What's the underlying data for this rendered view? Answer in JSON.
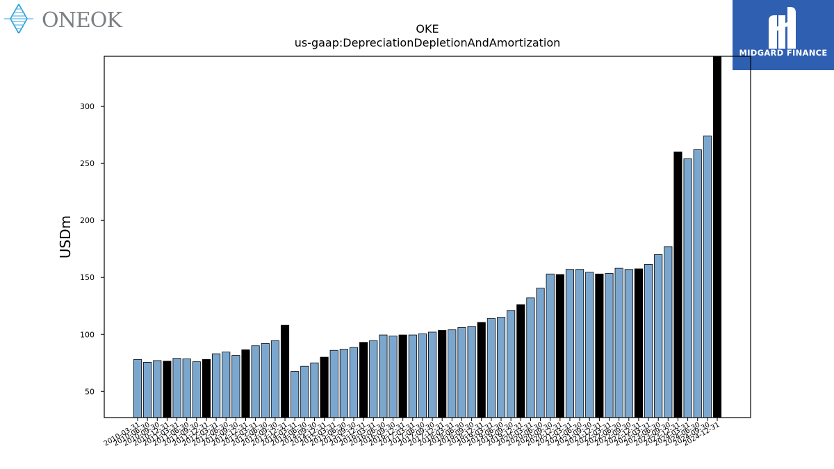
{
  "brand": {
    "company": "ONEOK",
    "watermark": "MIDGARD FINANCE"
  },
  "colors": {
    "bar_default": "#7ba7cf",
    "bar_highlight": "#000000",
    "bar_edge": "#000000",
    "watermark_bg": "#2f5fb0"
  },
  "chart_data": {
    "type": "bar",
    "title": "OKE",
    "subtitle": "us-gaap:DepreciationDepletionAndAmortization",
    "xlabel": "",
    "ylabel": "USDm",
    "ylim": [
      27,
      344
    ],
    "yticks": [
      50,
      100,
      150,
      200,
      250,
      300
    ],
    "grid": false,
    "legend": "none",
    "categories": [
      "2010-03-31",
      "2010-06-30",
      "2010-09-30",
      "2010-12-31",
      "2011-03-31",
      "2011-06-30",
      "2011-09-30",
      "2011-12-31",
      "2012-03-31",
      "2012-06-30",
      "2012-09-30",
      "2012-12-31",
      "2013-03-31",
      "2013-06-30",
      "2013-09-30",
      "2013-12-31",
      "2014-03-31",
      "2014-06-30",
      "2014-09-30",
      "2014-12-31",
      "2015-03-31",
      "2015-06-30",
      "2015-09-30",
      "2015-12-31",
      "2016-03-31",
      "2016-06-30",
      "2016-09-30",
      "2016-12-31",
      "2017-03-31",
      "2017-06-30",
      "2017-09-30",
      "2017-12-31",
      "2018-03-31",
      "2018-06-30",
      "2018-09-30",
      "2018-12-31",
      "2019-03-31",
      "2019-06-30",
      "2019-09-30",
      "2019-12-31",
      "2020-03-31",
      "2020-06-30",
      "2020-09-30",
      "2020-12-31",
      "2021-03-31",
      "2021-06-30",
      "2021-09-30",
      "2021-12-31",
      "2022-03-31",
      "2022-06-30",
      "2022-09-30",
      "2022-12-31",
      "2023-03-31",
      "2023-06-30",
      "2023-09-30",
      "2023-12-31",
      "2024-03-31",
      "2024-06-30",
      "2024-09-30",
      "2024-12-31"
    ],
    "values": [
      78,
      75.5,
      77,
      76.5,
      79,
      78.5,
      76,
      78,
      83,
      84.5,
      81.5,
      86.5,
      90,
      92,
      94.5,
      108,
      67.5,
      72,
      75,
      80,
      86,
      87,
      88.5,
      93,
      94.5,
      99.5,
      98.5,
      99.5,
      99.5,
      100.5,
      102,
      103.5,
      104,
      106,
      107,
      110.5,
      114,
      115,
      121,
      126,
      132,
      140.5,
      153,
      152.5,
      157,
      157,
      154.5,
      153,
      153.5,
      158,
      157,
      157.5,
      161.5,
      170,
      177,
      260,
      254,
      262,
      274,
      344
    ],
    "highlight": [
      false,
      false,
      false,
      true,
      false,
      false,
      false,
      true,
      false,
      false,
      false,
      true,
      false,
      false,
      false,
      true,
      false,
      false,
      false,
      true,
      false,
      false,
      false,
      true,
      false,
      false,
      false,
      true,
      false,
      false,
      false,
      true,
      false,
      false,
      false,
      true,
      false,
      false,
      false,
      true,
      false,
      false,
      false,
      true,
      false,
      false,
      false,
      true,
      false,
      false,
      false,
      true,
      false,
      false,
      false,
      true,
      false,
      false,
      false,
      true
    ]
  }
}
